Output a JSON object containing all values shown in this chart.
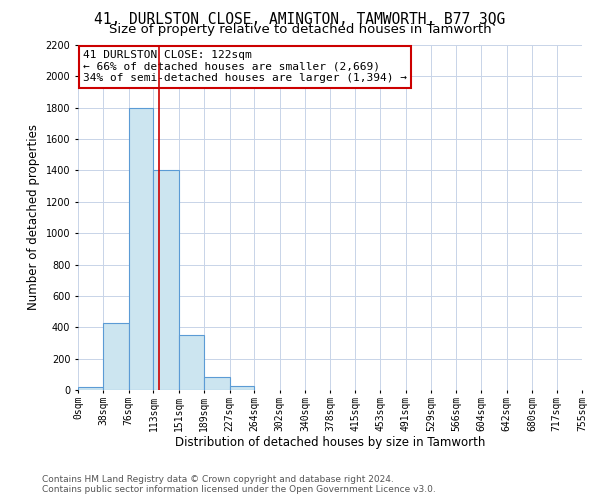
{
  "title": "41, DURLSTON CLOSE, AMINGTON, TAMWORTH, B77 3QG",
  "subtitle": "Size of property relative to detached houses in Tamworth",
  "bar_heights": [
    20,
    430,
    1800,
    1400,
    350,
    80,
    25,
    0,
    0,
    0,
    0,
    0,
    0,
    0,
    0,
    0,
    0,
    0,
    0,
    0
  ],
  "bin_edges": [
    0,
    38,
    76,
    113,
    151,
    189,
    227,
    264,
    302,
    340,
    378,
    415,
    453,
    491,
    529,
    566,
    604,
    642,
    680,
    717,
    755
  ],
  "tick_labels": [
    "0sqm",
    "38sqm",
    "76sqm",
    "113sqm",
    "151sqm",
    "189sqm",
    "227sqm",
    "264sqm",
    "302sqm",
    "340sqm",
    "378sqm",
    "415sqm",
    "453sqm",
    "491sqm",
    "529sqm",
    "566sqm",
    "604sqm",
    "642sqm",
    "680sqm",
    "717sqm",
    "755sqm"
  ],
  "xlabel": "Distribution of detached houses by size in Tamworth",
  "ylabel": "Number of detached properties",
  "bar_color": "#cce5f0",
  "bar_edge_color": "#5b9bd5",
  "vline_x": 122,
  "vline_color": "#cc0000",
  "annotation_title": "41 DURLSTON CLOSE: 122sqm",
  "annotation_line1": "← 66% of detached houses are smaller (2,669)",
  "annotation_line2": "34% of semi-detached houses are larger (1,394) →",
  "annotation_box_color": "#ffffff",
  "annotation_box_edge": "#cc0000",
  "ylim": [
    0,
    2200
  ],
  "yticks": [
    0,
    200,
    400,
    600,
    800,
    1000,
    1200,
    1400,
    1600,
    1800,
    2000,
    2200
  ],
  "grid_color": "#c8d4e8",
  "footer_line1": "Contains HM Land Registry data © Crown copyright and database right 2024.",
  "footer_line2": "Contains public sector information licensed under the Open Government Licence v3.0.",
  "title_fontsize": 10.5,
  "subtitle_fontsize": 9.5,
  "axis_label_fontsize": 8.5,
  "tick_fontsize": 7,
  "footer_fontsize": 6.5,
  "annotation_fontsize": 8
}
